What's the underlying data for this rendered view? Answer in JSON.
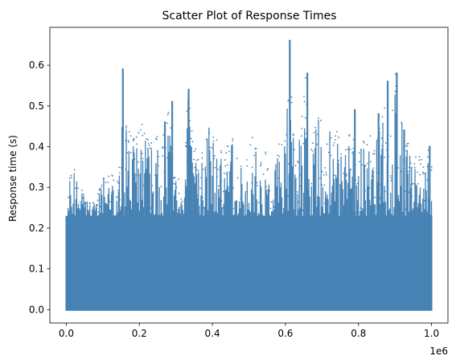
{
  "chart_data": {
    "type": "scatter",
    "title": "Scatter Plot of Response Times",
    "xlabel": "",
    "ylabel": "Response time (s)",
    "x_scale_label": "1e6",
    "xlim": [
      -45000,
      1045000
    ],
    "ylim": [
      -0.033,
      0.693
    ],
    "x_ticks": [
      0,
      200000,
      400000,
      600000,
      800000,
      1000000
    ],
    "x_tick_labels": [
      "0.0",
      "0.2",
      "0.4",
      "0.6",
      "0.8",
      "1.0"
    ],
    "y_ticks": [
      0.0,
      0.1,
      0.2,
      0.3,
      0.4,
      0.5,
      0.6
    ],
    "y_tick_labels": [
      "0.0",
      "0.1",
      "0.2",
      "0.3",
      "0.4",
      "0.5",
      "0.6"
    ],
    "grid": false,
    "series": [
      {
        "name": "Response times",
        "color": "#4682b4",
        "x_min": 0,
        "x_max": 1000000,
        "y_min": 0.0,
        "band_top_approx": 0.23,
        "envelope_x": [
          0,
          10000,
          20000,
          40000,
          60000,
          80000,
          100000,
          120000,
          140000,
          155000,
          170000,
          190000,
          210000,
          230000,
          250000,
          265000,
          280000,
          300000,
          320000,
          335000,
          350000,
          370000,
          390000,
          410000,
          430000,
          450000,
          470000,
          490000,
          510000,
          530000,
          550000,
          560000,
          575000,
          590000,
          600000,
          612000,
          625000,
          640000,
          655000,
          665000,
          680000,
          695000,
          710000,
          725000,
          740000,
          760000,
          775000,
          790000,
          810000,
          825000,
          840000,
          855000,
          870000,
          885000,
          900000,
          915000,
          930000,
          945000,
          960000,
          975000,
          990000,
          1000000
        ],
        "envelope_y": [
          0.19,
          0.33,
          0.35,
          0.3,
          0.26,
          0.27,
          0.32,
          0.34,
          0.31,
          0.48,
          0.44,
          0.42,
          0.47,
          0.4,
          0.46,
          0.42,
          0.51,
          0.32,
          0.35,
          0.54,
          0.4,
          0.38,
          0.45,
          0.42,
          0.38,
          0.43,
          0.39,
          0.35,
          0.43,
          0.36,
          0.4,
          0.25,
          0.39,
          0.43,
          0.42,
          0.66,
          0.39,
          0.44,
          0.58,
          0.39,
          0.44,
          0.49,
          0.39,
          0.46,
          0.45,
          0.39,
          0.44,
          0.41,
          0.39,
          0.48,
          0.39,
          0.43,
          0.58,
          0.46,
          0.58,
          0.47,
          0.44,
          0.36,
          0.4,
          0.37,
          0.4,
          0.36
        ],
        "spikes": [
          {
            "x": 155000,
            "y": 0.59
          },
          {
            "x": 270000,
            "y": 0.46
          },
          {
            "x": 290000,
            "y": 0.51
          },
          {
            "x": 335000,
            "y": 0.54
          },
          {
            "x": 612000,
            "y": 0.66
          },
          {
            "x": 660000,
            "y": 0.58
          },
          {
            "x": 790000,
            "y": 0.49
          },
          {
            "x": 855000,
            "y": 0.48
          },
          {
            "x": 880000,
            "y": 0.56
          },
          {
            "x": 905000,
            "y": 0.58
          },
          {
            "x": 925000,
            "y": 0.44
          },
          {
            "x": 995000,
            "y": 0.4
          }
        ]
      }
    ]
  }
}
